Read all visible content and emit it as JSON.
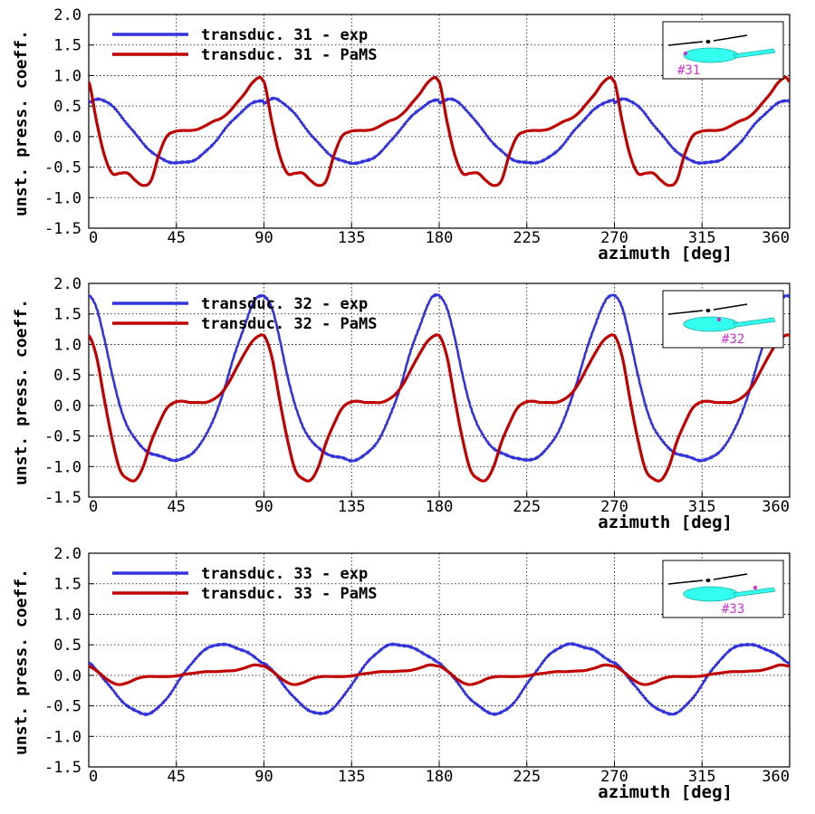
{
  "colors": {
    "exp": "#3333dd",
    "pams": "#c00000",
    "grid": "#000000",
    "inset_body": "#33ffee",
    "inset_marker": "#cc33cc"
  },
  "chart_data": [
    {
      "type": "line",
      "xlabel": "azimuth [deg]",
      "ylabel": "unst. press. coeff.",
      "xlim": [
        0,
        360
      ],
      "ylim": [
        -1.5,
        2.0
      ],
      "xticks": [
        0,
        45,
        90,
        135,
        180,
        225,
        270,
        315,
        360
      ],
      "xtick_labels": [
        "0",
        "45",
        "90",
        "135",
        "180",
        "225",
        "270",
        "315",
        "360"
      ],
      "yticks": [
        -1.5,
        -1.0,
        -0.5,
        0.0,
        0.5,
        1.0,
        1.5,
        2.0
      ],
      "ytick_labels": [
        "-1.5",
        "-1.0",
        "-0.5",
        "0.0",
        "0.5",
        "1.0",
        "1.5",
        "2.0"
      ],
      "grid": true,
      "legend_position": "top-left",
      "inset_label": "#31",
      "inset_marker_position": "fuselage-nose",
      "series": [
        {
          "name": "transduc. 31 - exp",
          "color": "exp",
          "x": [
            0,
            5,
            10,
            15,
            20,
            25,
            30,
            35,
            40,
            45,
            50,
            55,
            60,
            65,
            70,
            75,
            80,
            85,
            90
          ],
          "y": [
            0.55,
            0.62,
            0.55,
            0.4,
            0.2,
            0.0,
            -0.18,
            -0.32,
            -0.4,
            -0.43,
            -0.42,
            -0.37,
            -0.25,
            -0.08,
            0.12,
            0.3,
            0.45,
            0.56,
            0.6
          ],
          "period": 90
        },
        {
          "name": "transduc. 31 - PaMS",
          "color": "pams",
          "x": [
            0,
            4,
            8,
            12,
            16,
            20,
            24,
            28,
            32,
            36,
            40,
            44,
            48,
            52,
            56,
            60,
            64,
            68,
            72,
            76,
            80,
            84,
            88,
            90
          ],
          "y": [
            0.9,
            0.25,
            -0.3,
            -0.6,
            -0.6,
            -0.6,
            -0.72,
            -0.8,
            -0.72,
            -0.3,
            0.0,
            0.08,
            0.1,
            0.1,
            0.12,
            0.18,
            0.25,
            0.3,
            0.4,
            0.55,
            0.7,
            0.88,
            0.97,
            0.9
          ],
          "period": 90
        }
      ]
    },
    {
      "type": "line",
      "xlabel": "azimuth [deg]",
      "ylabel": "unst. press. coeff.",
      "xlim": [
        0,
        360
      ],
      "ylim": [
        -1.5,
        2.0
      ],
      "xticks": [
        0,
        45,
        90,
        135,
        180,
        225,
        270,
        315,
        360
      ],
      "xtick_labels": [
        "0",
        "45",
        "90",
        "135",
        "180",
        "225",
        "270",
        "315",
        "360"
      ],
      "yticks": [
        -1.5,
        -1.0,
        -0.5,
        0.0,
        0.5,
        1.0,
        1.5,
        2.0
      ],
      "ytick_labels": [
        "-1.5",
        "-1.0",
        "-0.5",
        "0.0",
        "0.5",
        "1.0",
        "1.5",
        "2.0"
      ],
      "grid": true,
      "legend_position": "top-left",
      "inset_label": "#32",
      "inset_marker_position": "fuselage-mid",
      "series": [
        {
          "name": "transduc. 32 - exp",
          "color": "exp",
          "x": [
            0,
            4,
            8,
            12,
            16,
            20,
            25,
            30,
            35,
            40,
            45,
            50,
            55,
            60,
            65,
            70,
            75,
            80,
            85,
            88,
            90
          ],
          "y": [
            1.8,
            1.6,
            1.1,
            0.5,
            0.0,
            -0.35,
            -0.6,
            -0.75,
            -0.82,
            -0.86,
            -0.9,
            -0.85,
            -0.72,
            -0.5,
            -0.15,
            0.3,
            0.85,
            1.3,
            1.7,
            1.8,
            1.8
          ],
          "period": 90
        },
        {
          "name": "transduc. 32 - PaMS",
          "color": "pams",
          "x": [
            0,
            4,
            8,
            12,
            16,
            20,
            24,
            28,
            32,
            36,
            40,
            44,
            48,
            52,
            56,
            60,
            64,
            68,
            72,
            76,
            80,
            84,
            88,
            90
          ],
          "y": [
            1.15,
            0.8,
            0.1,
            -0.55,
            -1.05,
            -1.2,
            -1.22,
            -1.0,
            -0.6,
            -0.3,
            -0.05,
            0.05,
            0.07,
            0.05,
            0.05,
            0.05,
            0.1,
            0.2,
            0.38,
            0.62,
            0.85,
            1.05,
            1.15,
            1.15
          ],
          "period": 90
        }
      ]
    },
    {
      "type": "line",
      "xlabel": "azimuth [deg]",
      "ylabel": "unst. press. coeff.",
      "xlim": [
        0,
        360
      ],
      "ylim": [
        -1.5,
        2.0
      ],
      "xticks": [
        0,
        45,
        90,
        135,
        180,
        225,
        270,
        315,
        360
      ],
      "xtick_labels": [
        "0",
        "45",
        "90",
        "135",
        "180",
        "225",
        "270",
        "315",
        "360"
      ],
      "yticks": [
        -1.5,
        -1.0,
        -0.5,
        0.0,
        0.5,
        1.0,
        1.5,
        2.0
      ],
      "ytick_labels": [
        "-1.5",
        "-1.0",
        "-0.5",
        "0.0",
        "0.5",
        "1.0",
        "1.5",
        "2.0"
      ],
      "grid": true,
      "legend_position": "top-left",
      "inset_label": "#33",
      "inset_marker_position": "tail-boom",
      "series": [
        {
          "name": "transduc. 33 - exp",
          "color": "exp",
          "x": [
            0,
            5,
            10,
            15,
            20,
            25,
            30,
            35,
            40,
            45,
            50,
            55,
            60,
            65,
            70,
            75,
            80,
            85,
            90
          ],
          "y": [
            0.2,
            0.05,
            -0.15,
            -0.35,
            -0.5,
            -0.6,
            -0.63,
            -0.55,
            -0.38,
            -0.15,
            0.08,
            0.28,
            0.42,
            0.5,
            0.5,
            0.46,
            0.4,
            0.3,
            0.2
          ],
          "period": 90
        },
        {
          "name": "transduc. 33 - PaMS",
          "color": "pams",
          "x": [
            0,
            5,
            10,
            15,
            20,
            25,
            30,
            35,
            40,
            45,
            50,
            55,
            60,
            65,
            70,
            75,
            80,
            85,
            90
          ],
          "y": [
            0.15,
            0.05,
            -0.08,
            -0.15,
            -0.12,
            -0.05,
            -0.02,
            -0.02,
            -0.02,
            -0.01,
            0.02,
            0.04,
            0.06,
            0.06,
            0.07,
            0.08,
            0.12,
            0.17,
            0.15
          ],
          "period": 90
        }
      ]
    }
  ]
}
